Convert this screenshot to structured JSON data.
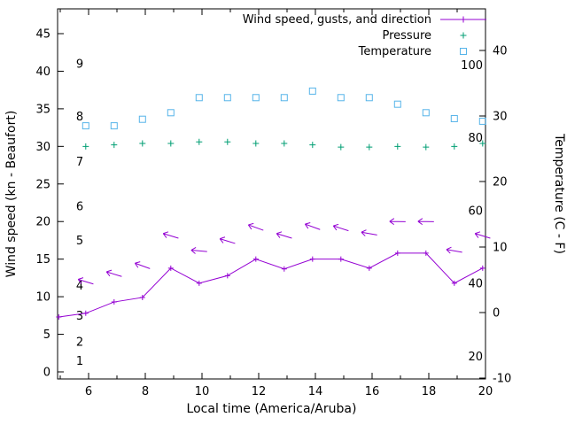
{
  "chart_data": {
    "type": "line",
    "background": "#ffffff",
    "legend": {
      "position": "top-right-inside",
      "items": [
        {
          "label": "Wind speed, gusts, and direction",
          "marker": "line-plus",
          "color": "#9400d3"
        },
        {
          "label": "Pressure",
          "marker": "plus",
          "color": "#009e73"
        },
        {
          "label": "Temperature",
          "marker": "open-square",
          "color": "#56b4e9"
        }
      ]
    },
    "x_axis": {
      "label": "Local time (America/Aruba)",
      "range": [
        4.9,
        20
      ],
      "major_ticks": [
        6,
        8,
        10,
        12,
        14,
        16,
        18,
        20
      ],
      "minor_ticks": [
        5,
        7,
        9,
        11,
        13,
        15,
        17,
        19
      ]
    },
    "y_axis_left": {
      "label": "Wind speed (kn - Beaufort)",
      "ticks": [
        0,
        5,
        10,
        15,
        20,
        25,
        30,
        35,
        40,
        45
      ],
      "beaufort_labels": [
        {
          "label": "1",
          "kn": 1.5
        },
        {
          "label": "2",
          "kn": 4
        },
        {
          "label": "3",
          "kn": 7.5
        },
        {
          "label": "4",
          "kn": 11.5
        },
        {
          "label": "5",
          "kn": 17.5
        },
        {
          "label": "6",
          "kn": 22
        },
        {
          "label": "7",
          "kn": 28
        },
        {
          "label": "8",
          "kn": 34
        },
        {
          "label": "9",
          "kn": 41
        }
      ]
    },
    "y_axis_right": {
      "label": "Temperature (C - F)",
      "ticks_celsius": [
        -10,
        0,
        10,
        20,
        30,
        40
      ],
      "fahrenheit_labels": [
        20,
        40,
        60,
        80,
        100
      ]
    },
    "series": {
      "wind_speed": {
        "color": "#9400d3",
        "yaxis": "left",
        "points": [
          [
            4.95,
            7.3
          ],
          [
            5.9,
            7.8
          ],
          [
            6.9,
            9.3
          ],
          [
            7.9,
            9.9
          ],
          [
            8.9,
            13.8
          ],
          [
            9.9,
            11.8
          ],
          [
            10.9,
            12.8
          ],
          [
            11.9,
            15.0
          ],
          [
            12.9,
            13.7
          ],
          [
            13.9,
            15.0
          ],
          [
            14.9,
            15.0
          ],
          [
            15.9,
            13.8
          ],
          [
            16.9,
            15.8
          ],
          [
            17.9,
            15.8
          ],
          [
            18.9,
            11.8
          ],
          [
            19.9,
            13.8
          ]
        ]
      },
      "gusts": {
        "color": "#9400d3",
        "yaxis": "left",
        "points": [
          [
            5.9,
            12.0,
            197
          ],
          [
            6.9,
            13.0,
            197
          ],
          [
            7.9,
            14.1,
            200
          ],
          [
            8.9,
            18.1,
            197
          ],
          [
            9.9,
            16.1,
            185
          ],
          [
            10.9,
            17.4,
            197
          ],
          [
            11.9,
            19.2,
            200
          ],
          [
            12.9,
            18.1,
            197
          ],
          [
            13.9,
            19.3,
            200
          ],
          [
            14.9,
            19.1,
            198
          ],
          [
            15.9,
            18.4,
            190
          ],
          [
            16.9,
            20.0,
            181
          ],
          [
            17.9,
            20.0,
            181
          ],
          [
            18.9,
            16.1,
            190
          ],
          [
            19.9,
            18.1,
            197
          ]
        ]
      },
      "pressure": {
        "color": "#009e73",
        "yaxis": "left",
        "points": [
          [
            5.9,
            30.0
          ],
          [
            6.9,
            30.2
          ],
          [
            7.9,
            30.4
          ],
          [
            8.9,
            30.4
          ],
          [
            9.9,
            30.6
          ],
          [
            10.9,
            30.6
          ],
          [
            11.9,
            30.4
          ],
          [
            12.9,
            30.4
          ],
          [
            13.9,
            30.2
          ],
          [
            14.9,
            29.9
          ],
          [
            15.9,
            29.9
          ],
          [
            16.9,
            30.0
          ],
          [
            17.9,
            29.9
          ],
          [
            18.9,
            30.0
          ],
          [
            19.9,
            30.4
          ]
        ]
      },
      "temperature": {
        "color": "#56b4e9",
        "yaxis": "right",
        "points": [
          [
            5.9,
            28.5
          ],
          [
            6.9,
            28.5
          ],
          [
            7.9,
            29.5
          ],
          [
            8.9,
            30.5
          ],
          [
            9.9,
            32.8
          ],
          [
            10.9,
            32.8
          ],
          [
            11.9,
            32.8
          ],
          [
            12.9,
            32.8
          ],
          [
            13.9,
            33.8
          ],
          [
            14.9,
            32.8
          ],
          [
            15.9,
            32.8
          ],
          [
            16.9,
            31.8
          ],
          [
            17.9,
            30.5
          ],
          [
            18.9,
            29.6
          ],
          [
            19.9,
            29.2
          ]
        ]
      }
    }
  }
}
